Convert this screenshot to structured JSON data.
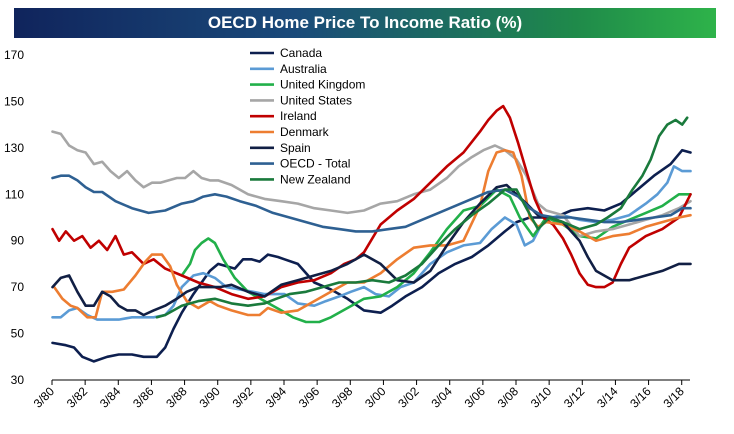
{
  "chart_data": {
    "type": "line",
    "title": "OECD Home Price To Income Ratio (%)",
    "xlabel": "",
    "ylabel": "",
    "ylim": [
      30,
      170
    ],
    "yticks": [
      30,
      50,
      70,
      90,
      110,
      130,
      150,
      170
    ],
    "xlim": [
      1980.17,
      2018.67
    ],
    "xticks": [
      {
        "label": "3/80",
        "t": 1980.17
      },
      {
        "label": "3/82",
        "t": 1982.17
      },
      {
        "label": "3/84",
        "t": 1984.17
      },
      {
        "label": "3/86",
        "t": 1986.17
      },
      {
        "label": "3/88",
        "t": 1988.17
      },
      {
        "label": "3/90",
        "t": 1990.17
      },
      {
        "label": "3/92",
        "t": 1992.17
      },
      {
        "label": "3/94",
        "t": 1994.17
      },
      {
        "label": "3/96",
        "t": 1996.17
      },
      {
        "label": "3/98",
        "t": 1998.17
      },
      {
        "label": "3/00",
        "t": 2000.17
      },
      {
        "label": "3/02",
        "t": 2002.17
      },
      {
        "label": "3/04",
        "t": 2004.17
      },
      {
        "label": "3/06",
        "t": 2006.17
      },
      {
        "label": "3/08",
        "t": 2008.17
      },
      {
        "label": "3/10",
        "t": 2010.17
      },
      {
        "label": "3/12",
        "t": 2012.17
      },
      {
        "label": "3/14",
        "t": 2014.17
      },
      {
        "label": "3/16",
        "t": 2016.17
      },
      {
        "label": "3/18",
        "t": 2018.17
      }
    ],
    "grid": false,
    "legend_position": "top-center",
    "series": [
      {
        "name": "Canada",
        "color": "#0d1f4f",
        "x": [
          1980.2,
          1981,
          1981.5,
          1982,
          1982.7,
          1983.5,
          1984.2,
          1985,
          1985.7,
          1986.5,
          1987,
          1987.5,
          1988,
          1988.7,
          1989.2,
          1989.7,
          1990.2,
          1990.7,
          1991.2,
          1991.7,
          1992.2,
          1992.7,
          1993.2,
          1993.8,
          1994.2,
          1995,
          1996,
          1997,
          1998,
          1999,
          2000,
          2000.7,
          2001.5,
          2002.5,
          2003.5,
          2004.5,
          2005.5,
          2006.5,
          2007.5,
          2008.2,
          2009,
          2009.7,
          2010.5,
          2011.5,
          2012.5,
          2013.5,
          2014.5,
          2015.5,
          2016.5,
          2017.5,
          2018.2,
          2018.7
        ],
        "y": [
          46,
          45,
          44,
          40,
          38,
          40,
          41,
          41,
          40,
          40,
          44,
          52,
          59,
          67,
          72,
          77,
          80,
          79,
          78,
          82,
          82,
          81,
          84,
          83,
          82,
          80,
          72,
          69,
          65,
          60,
          59,
          62,
          66,
          70,
          76,
          80,
          83,
          88,
          94,
          98,
          100,
          100,
          100,
          103,
          104,
          103,
          106,
          112,
          118,
          123,
          129,
          128
        ]
      },
      {
        "name": "Australia",
        "color": "#5b9bd5",
        "x": [
          1980.2,
          1980.7,
          1981.2,
          1981.7,
          1982.3,
          1982.9,
          1983.5,
          1984.2,
          1985,
          1985.7,
          1986.3,
          1987,
          1987.5,
          1988,
          1988.7,
          1989.3,
          1990,
          1990.7,
          1991.5,
          1992.3,
          1993,
          1993.5,
          1994.2,
          1995,
          1996,
          1996.7,
          1997.5,
          1998.2,
          1999,
          1999.7,
          2000.5,
          2001.2,
          2002,
          2003,
          2004,
          2005,
          2006,
          2006.7,
          2007.5,
          2008.2,
          2008.7,
          2009.2,
          2009.7,
          2010.3,
          2011,
          2012,
          2013,
          2014,
          2015,
          2016,
          2016.7,
          2017.3,
          2017.7,
          2018.2,
          2018.7
        ],
        "y": [
          57,
          57,
          60,
          61,
          58,
          56,
          56,
          56,
          57,
          57,
          57,
          58,
          62,
          70,
          75,
          76,
          74,
          70,
          69,
          68,
          67,
          67,
          67,
          63,
          62,
          64,
          66,
          68,
          70,
          67,
          66,
          70,
          72,
          80,
          85,
          88,
          89,
          95,
          100,
          97,
          88,
          90,
          97,
          100,
          101,
          99,
          98,
          99,
          101,
          106,
          110,
          115,
          122,
          120,
          120
        ]
      },
      {
        "name": "United Kingdom",
        "color": "#22b04a",
        "x": [
          1988,
          1988.5,
          1988.8,
          1989.2,
          1989.6,
          1990,
          1990.5,
          1991.2,
          1992,
          1993,
          1994,
          1994.7,
          1995.5,
          1996.3,
          1997,
          1998,
          1999,
          2000,
          2001,
          2002,
          2003,
          2004,
          2005,
          2006,
          2007,
          2007.8,
          2008.4,
          2009.2,
          2010,
          2011,
          2012,
          2013,
          2014,
          2015,
          2016,
          2017,
          2018,
          2018.7
        ],
        "y": [
          75,
          80,
          86,
          89,
          91,
          89,
          82,
          74,
          68,
          64,
          60,
          57,
          55,
          55,
          57,
          61,
          65,
          66,
          70,
          76,
          85,
          95,
          103,
          105,
          112,
          109,
          100,
          92,
          100,
          97,
          92,
          91,
          96,
          99,
          102,
          105,
          110,
          110
        ]
      },
      {
        "name": "United States",
        "color": "#a6a6a6",
        "x": [
          1980.2,
          1980.7,
          1981.2,
          1981.7,
          1982.2,
          1982.7,
          1983.2,
          1983.7,
          1984.2,
          1984.7,
          1985.2,
          1985.7,
          1986.2,
          1986.7,
          1987.2,
          1987.7,
          1988.2,
          1988.7,
          1989.2,
          1989.7,
          1990.2,
          1991,
          1992,
          1993,
          1994,
          1995,
          1996,
          1997,
          1998,
          1999,
          2000,
          2001,
          2002,
          2003,
          2004,
          2004.7,
          2005.5,
          2006.2,
          2006.9,
          2007.5,
          2008.2,
          2008.8,
          2009.5,
          2010,
          2011,
          2012,
          2013,
          2014,
          2015,
          2016,
          2017,
          2018,
          2018.7
        ],
        "y": [
          137,
          136,
          131,
          129,
          128,
          123,
          124,
          120,
          117,
          120,
          116,
          113,
          115,
          115,
          116,
          117,
          117,
          120,
          117,
          116,
          116,
          114,
          110,
          108,
          107,
          106,
          104,
          103,
          102,
          103,
          106,
          107,
          110,
          112,
          117,
          122,
          126,
          129,
          131,
          129,
          125,
          118,
          106,
          103,
          101,
          92,
          94,
          95,
          97,
          99,
          101,
          104,
          107
        ]
      },
      {
        "name": "Ireland",
        "color": "#c00000",
        "x": [
          1980.2,
          1980.6,
          1981,
          1981.5,
          1982,
          1982.5,
          1983,
          1983.5,
          1984,
          1984.5,
          1985,
          1985.7,
          1986.3,
          1987,
          1988,
          1989,
          1990,
          1991,
          1992,
          1993,
          1994,
          1995,
          1996,
          1997,
          1997.8,
          1998.5,
          1999,
          2000,
          2001,
          2002,
          2003,
          2004,
          2005,
          2006,
          2006.5,
          2007,
          2007.4,
          2007.8,
          2008.3,
          2008.8,
          2009.3,
          2009.8,
          2010.4,
          2011,
          2011.5,
          2012,
          2012.5,
          2013,
          2013.5,
          2014,
          2014.5,
          2015,
          2016,
          2017,
          2018,
          2018.7
        ],
        "y": [
          95,
          90,
          94,
          90,
          92,
          87,
          90,
          86,
          92,
          84,
          85,
          80,
          82,
          78,
          75,
          72,
          70,
          67,
          65,
          66,
          70,
          72,
          73,
          76,
          80,
          82,
          85,
          97,
          103,
          108,
          115,
          122,
          128,
          137,
          142,
          146,
          148,
          143,
          132,
          120,
          108,
          100,
          97,
          91,
          84,
          76,
          71,
          70,
          70,
          72,
          80,
          87,
          92,
          95,
          100,
          110
        ]
      },
      {
        "name": "Denmark",
        "color": "#ed7d31",
        "x": [
          1980.3,
          1980.8,
          1981.3,
          1981.7,
          1982.3,
          1982.8,
          1983.2,
          1983.8,
          1984.5,
          1985.2,
          1985.8,
          1986.2,
          1986.8,
          1987.3,
          1987.7,
          1988.3,
          1989,
          1989.7,
          1990.2,
          1991,
          1992,
          1992.7,
          1993.2,
          1994,
          1995,
          1996,
          1997,
          1998,
          1999,
          2000,
          2001,
          2002,
          2003,
          2004,
          2005,
          2006,
          2006.5,
          2007,
          2007.5,
          2008,
          2008.5,
          2009,
          2009.5,
          2010,
          2011,
          2012,
          2013,
          2014,
          2015,
          2016,
          2017,
          2018,
          2018.7
        ],
        "y": [
          70,
          65,
          62,
          61,
          57,
          57,
          68,
          68,
          69,
          75,
          81,
          84,
          84,
          79,
          71,
          64,
          61,
          64,
          62,
          60,
          58,
          58,
          61,
          59,
          60,
          64,
          68,
          72,
          72,
          76,
          82,
          87,
          88,
          88,
          90,
          105,
          120,
          128,
          129,
          128,
          118,
          100,
          96,
          98,
          97,
          94,
          90,
          92,
          93,
          96,
          98,
          100,
          101
        ]
      },
      {
        "name": "Spain",
        "color": "#111f44",
        "x": [
          1980.2,
          1980.7,
          1981.2,
          1981.7,
          1982.2,
          1982.7,
          1983.2,
          1983.7,
          1984.2,
          1984.7,
          1985.2,
          1985.7,
          1986.3,
          1987,
          1987.7,
          1988.3,
          1989,
          1989.7,
          1990.3,
          1991,
          1992,
          1993,
          1994,
          1995,
          1996,
          1997,
          1998,
          1999,
          2000,
          2001,
          2002,
          2003,
          2004,
          2005,
          2006,
          2007,
          2007.6,
          2008.2,
          2008.8,
          2009.5,
          2010.2,
          2011,
          2012,
          2012.5,
          2013,
          2014,
          2015,
          2016,
          2017,
          2018,
          2018.7
        ],
        "y": [
          70,
          74,
          75,
          68,
          62,
          62,
          68,
          66,
          62,
          60,
          60,
          58,
          60,
          62,
          65,
          68,
          70,
          70,
          70,
          71,
          68,
          66,
          71,
          73,
          75,
          77,
          80,
          84,
          80,
          73,
          72,
          77,
          88,
          98,
          106,
          113,
          114,
          110,
          106,
          101,
          100,
          98,
          90,
          83,
          77,
          73,
          73,
          75,
          77,
          80,
          80
        ]
      },
      {
        "name": "OECD - Total",
        "color": "#2e6092",
        "x": [
          1980.2,
          1980.7,
          1981.2,
          1981.7,
          1982.2,
          1982.7,
          1983.2,
          1984,
          1985,
          1986,
          1987,
          1988,
          1988.7,
          1989.3,
          1990,
          1990.7,
          1991.5,
          1992.5,
          1993.5,
          1994.5,
          1995.5,
          1996.5,
          1997.5,
          1998.5,
          1999.5,
          2000.5,
          2001.5,
          2002.5,
          2003.5,
          2004.5,
          2005.5,
          2006.5,
          2007.5,
          2008.3,
          2009,
          2009.7,
          2010.5,
          2011.5,
          2012.5,
          2013.5,
          2014.5,
          2015.5,
          2016.5,
          2017.5,
          2018.2,
          2018.7
        ],
        "y": [
          117,
          118,
          118,
          116,
          113,
          111,
          111,
          107,
          104,
          102,
          103,
          106,
          107,
          109,
          110,
          109,
          107,
          105,
          102,
          100,
          98,
          96,
          95,
          94,
          94,
          95,
          96,
          99,
          102,
          105,
          108,
          111,
          112,
          109,
          104,
          101,
          100,
          100,
          99,
          98,
          98,
          99,
          100,
          101,
          104,
          104
        ]
      },
      {
        "name": "New Zealand",
        "color": "#1a7a3c",
        "x": [
          1986.5,
          1987,
          1987.5,
          1988,
          1989,
          1990,
          1991,
          1992,
          1993,
          1993.7,
          1994.5,
          1995.5,
          1996.5,
          1997.5,
          1998.5,
          1999.5,
          2000.5,
          2001.5,
          2002.5,
          2003.5,
          2004.5,
          2005.5,
          2006.5,
          2007.5,
          2008.2,
          2008.8,
          2009.5,
          2010.2,
          2011,
          2012,
          2013,
          2013.7,
          2014.5,
          2015.2,
          2015.8,
          2016.3,
          2016.8,
          2017.3,
          2017.8,
          2018.2,
          2018.5
        ],
        "y": [
          57,
          58,
          60,
          62,
          64,
          65,
          63,
          62,
          63,
          65,
          67,
          68,
          70,
          72,
          72,
          73,
          72,
          75,
          80,
          88,
          95,
          101,
          106,
          112,
          112,
          104,
          95,
          100,
          98,
          95,
          97,
          100,
          104,
          112,
          118,
          125,
          135,
          140,
          142,
          140,
          143
        ]
      }
    ]
  }
}
